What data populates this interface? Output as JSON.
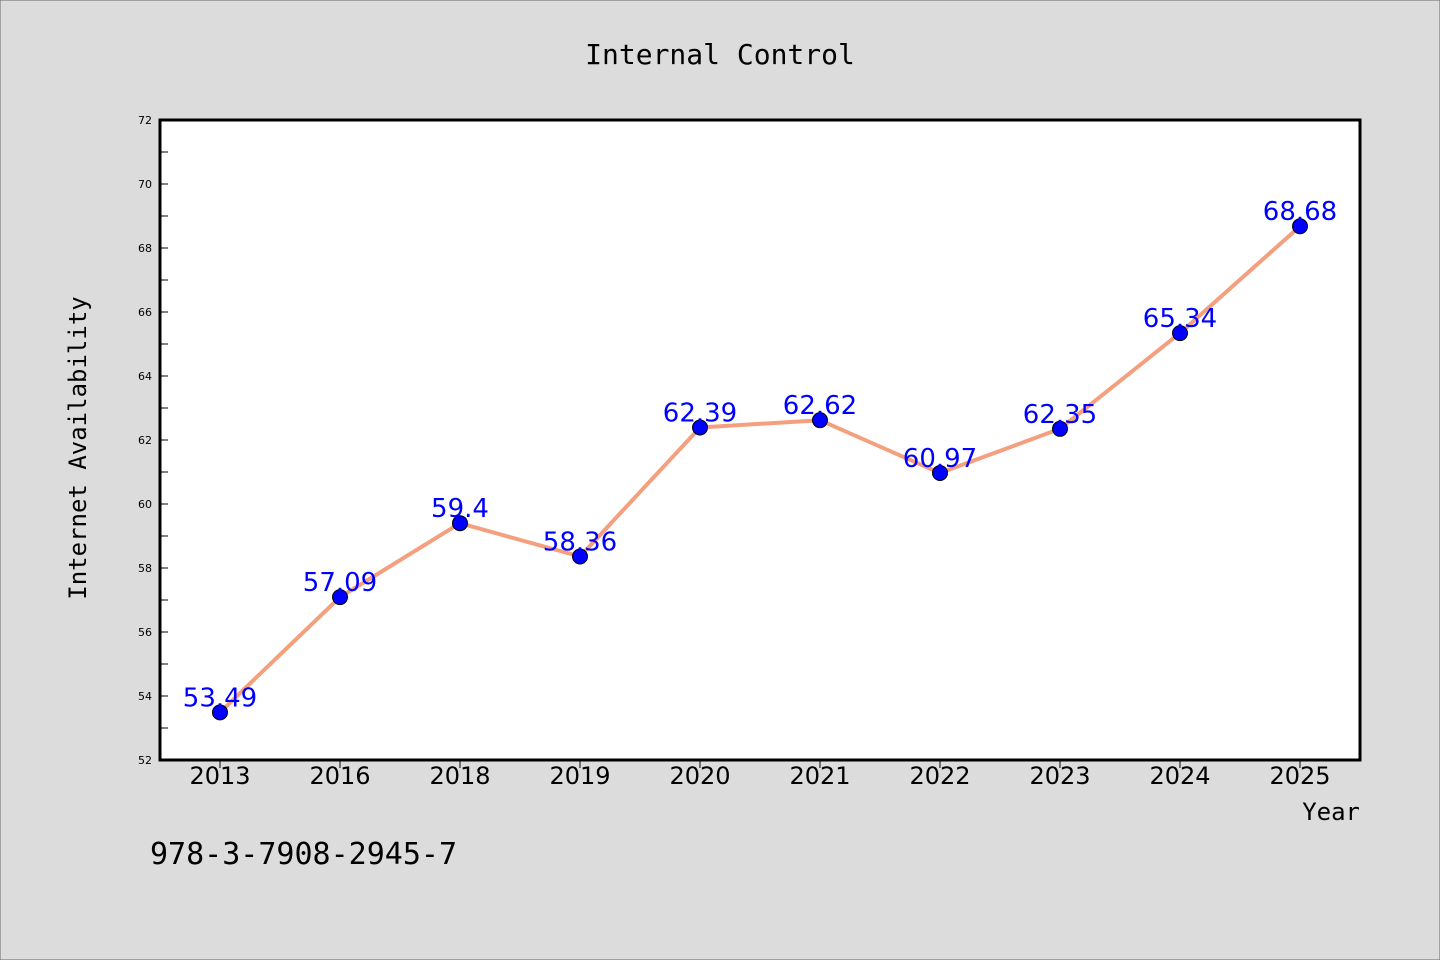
{
  "colors": {
    "background": "#dcdcdc",
    "plot_background": "#ffffff",
    "line": "#f4a07e",
    "marker": "#0000ff",
    "data_label": "#0000ff",
    "text": "#000000"
  },
  "footer": {
    "code": "978-3-7908-2945-7"
  },
  "chart_data": {
    "type": "line",
    "title": "Internal Control",
    "xlabel": "Year",
    "ylabel": "Internet Availability",
    "categories": [
      "2013",
      "2016",
      "2018",
      "2019",
      "2020",
      "2021",
      "2022",
      "2023",
      "2024",
      "2025"
    ],
    "series": [
      {
        "values": [
          53.49,
          57.09,
          59.4,
          58.36,
          62.39,
          62.62,
          60.97,
          62.35,
          65.34,
          68.68
        ]
      }
    ],
    "data_labels": [
      "53.49",
      "57.09",
      "59.4",
      "58.36",
      "62.39",
      "62.62",
      "60.97",
      "62.35",
      "65.34",
      "68.68"
    ],
    "ylim": [
      52,
      72
    ],
    "yticks": [
      52,
      54,
      56,
      58,
      60,
      62,
      64,
      66,
      68,
      70,
      72
    ],
    "grid": false,
    "legend": "none"
  }
}
